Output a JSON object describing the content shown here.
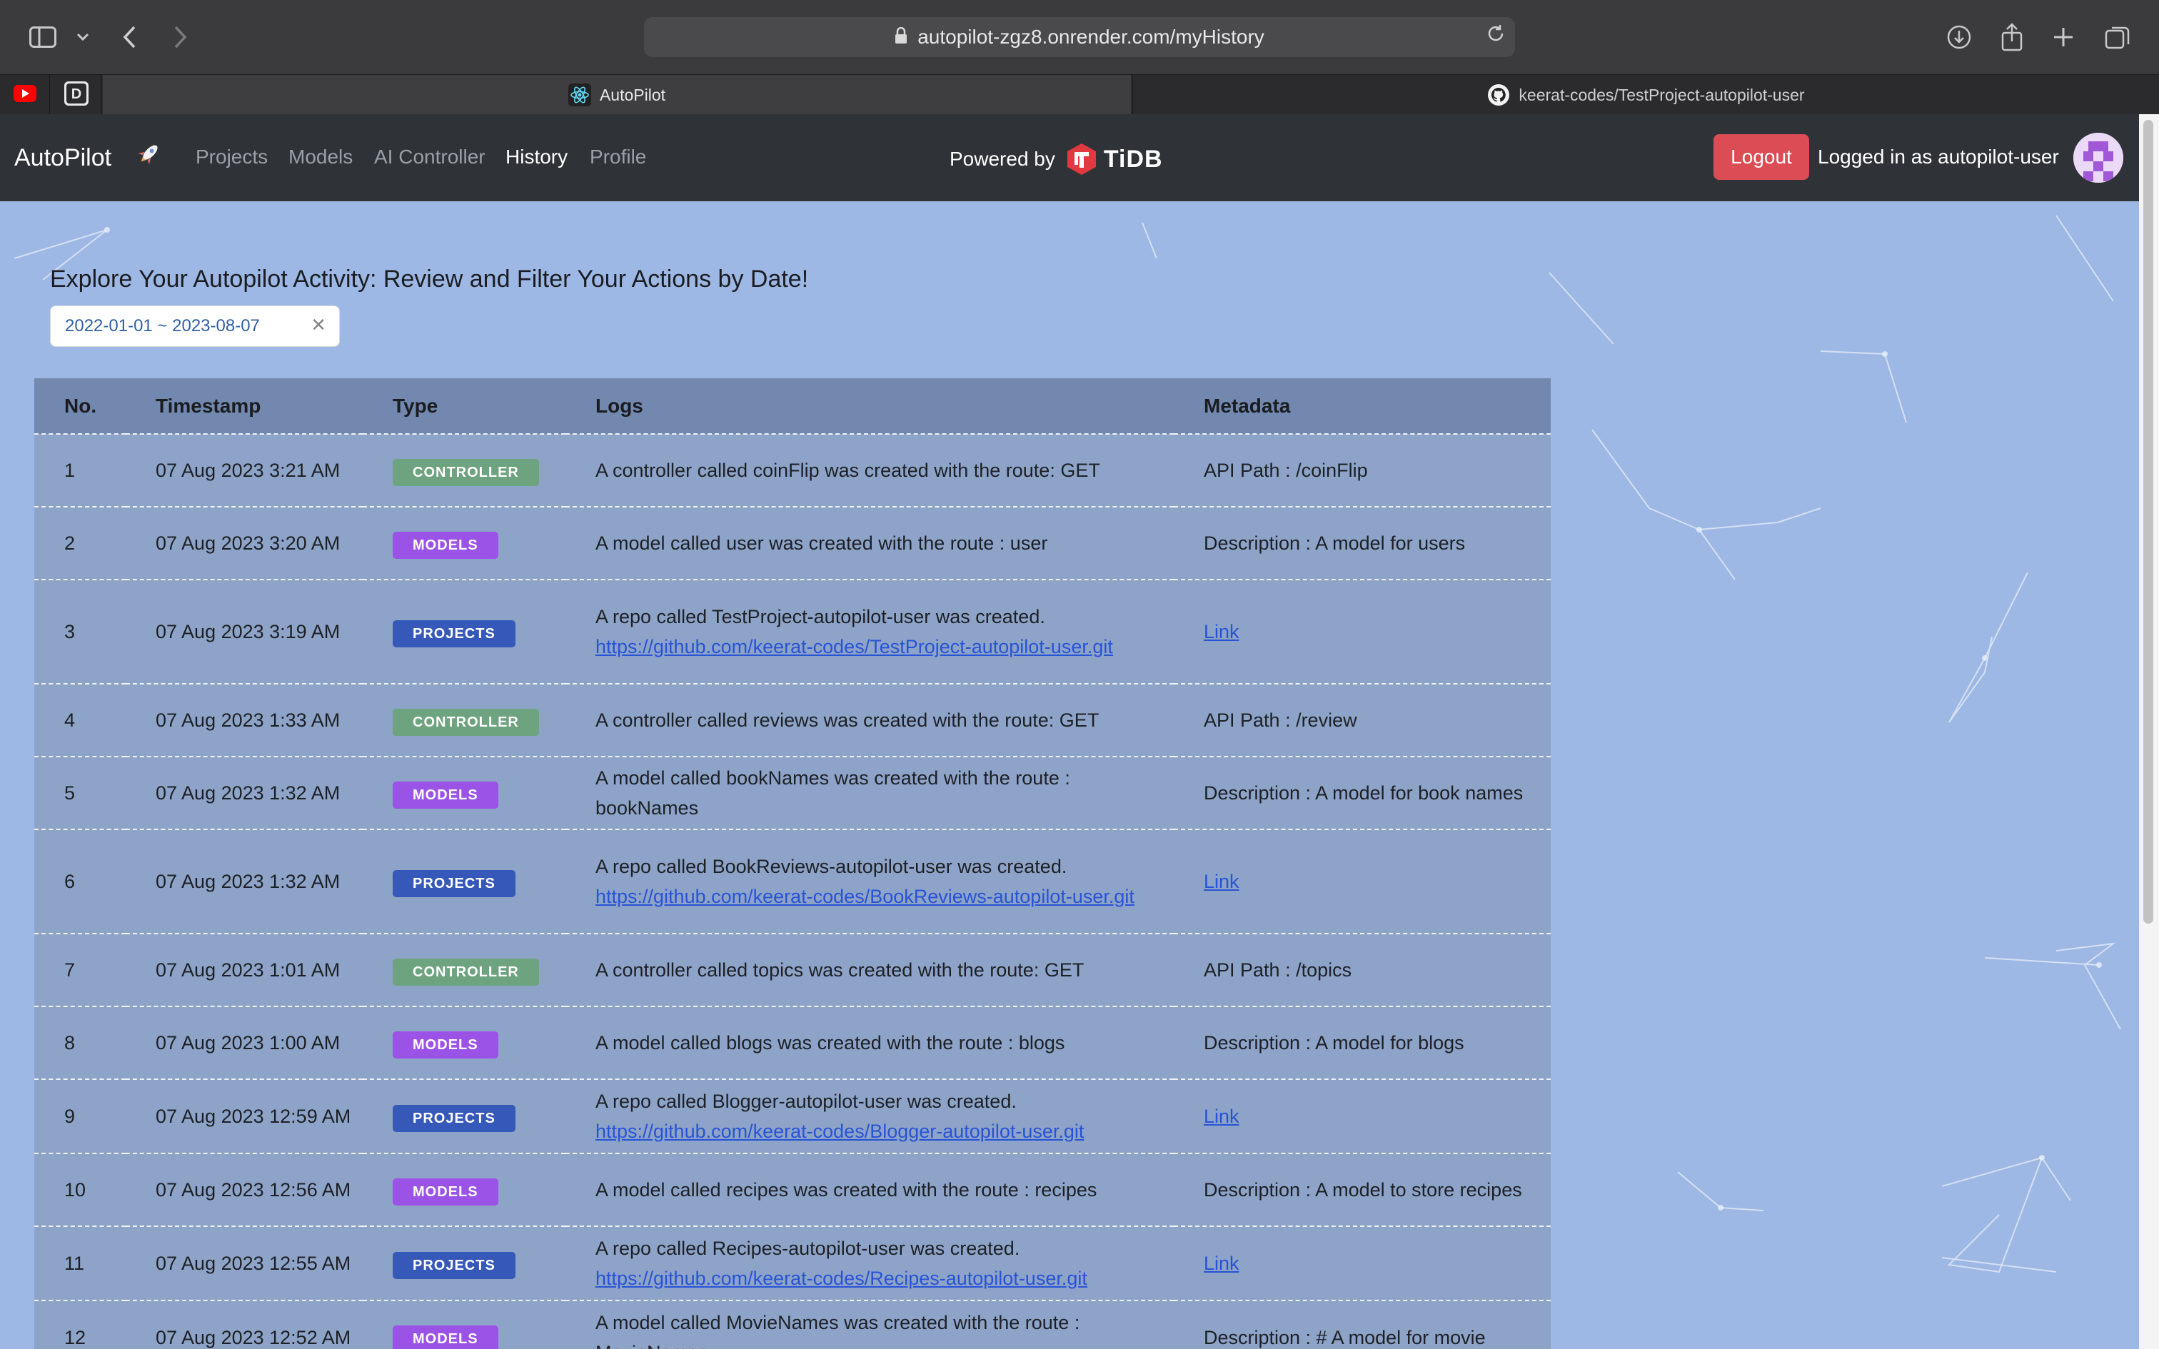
{
  "browser": {
    "url": "autopilot-zgz8.onrender.com/myHistory",
    "tabs": [
      {
        "label": "AutoPilot",
        "active": true
      },
      {
        "label": "keerat-codes/TestProject-autopilot-user",
        "active": false
      }
    ],
    "icons": [
      "sidebar-icon",
      "chevron-down-icon",
      "back-icon",
      "forward-icon",
      "lock-icon",
      "reload-icon",
      "download-icon",
      "share-icon",
      "new-tab-icon",
      "tab-overview-icon",
      "youtube-icon",
      "devto-icon",
      "react-icon",
      "github-icon"
    ]
  },
  "navbar": {
    "brand": "AutoPilot",
    "links": [
      "Projects",
      "Models",
      "AI Controller",
      "History",
      "Profile"
    ],
    "active_link": "History",
    "powered_by": "Powered by",
    "tidb": "TiDB",
    "logout": "Logout",
    "logged_in": "Logged in as autopilot-user"
  },
  "page": {
    "title": "Explore Your Autopilot Activity: Review and Filter Your Actions by Date!",
    "date_range": "2022-01-01 ~ 2023-08-07"
  },
  "table": {
    "headers": [
      "No.",
      "Timestamp",
      "Type",
      "Logs",
      "Metadata"
    ],
    "rows": [
      {
        "no": "1",
        "ts": "07 Aug 2023 3:21 AM",
        "type": "CONTROLLER",
        "log": "A controller called coinFlip was created with the route: GET",
        "meta": "API Path : /coinFlip"
      },
      {
        "no": "2",
        "ts": "07 Aug 2023 3:20 AM",
        "type": "MODELS",
        "log": "A model called user was created with the route : user",
        "meta": "Description : A model for users"
      },
      {
        "no": "3",
        "ts": "07 Aug 2023 3:19 AM",
        "type": "PROJECTS",
        "log": "A repo called TestProject-autopilot-user was created.",
        "url": "https://github.com/keerat-codes/TestProject-autopilot-user.git",
        "meta": "Link"
      },
      {
        "no": "4",
        "ts": "07 Aug 2023 1:33 AM",
        "type": "CONTROLLER",
        "log": "A controller called reviews was created with the route: GET",
        "meta": "API Path : /review"
      },
      {
        "no": "5",
        "ts": "07 Aug 2023 1:32 AM",
        "type": "MODELS",
        "log": "A model called bookNames was created with the route : bookNames",
        "meta": "Description : A model for book names"
      },
      {
        "no": "6",
        "ts": "07 Aug 2023 1:32 AM",
        "type": "PROJECTS",
        "log": "A repo called BookReviews-autopilot-user was created.",
        "url": "https://github.com/keerat-codes/BookReviews-autopilot-user.git",
        "meta": "Link"
      },
      {
        "no": "7",
        "ts": "07 Aug 2023 1:01 AM",
        "type": "CONTROLLER",
        "log": "A controller called topics was created with the route: GET",
        "meta": "API Path : /topics"
      },
      {
        "no": "8",
        "ts": "07 Aug 2023 1:00 AM",
        "type": "MODELS",
        "log": "A model called blogs was created with the route : blogs",
        "meta": "Description : A model for blogs"
      },
      {
        "no": "9",
        "ts": "07 Aug 2023 12:59 AM",
        "type": "PROJECTS",
        "log": "A repo called Blogger-autopilot-user was created.",
        "url": "https://github.com/keerat-codes/Blogger-autopilot-user.git",
        "meta": "Link"
      },
      {
        "no": "10",
        "ts": "07 Aug 2023 12:56 AM",
        "type": "MODELS",
        "log": "A model called recipes was created with the route : recipes",
        "meta": "Description : A model to store recipes"
      },
      {
        "no": "11",
        "ts": "07 Aug 2023 12:55 AM",
        "type": "PROJECTS",
        "log": "A repo called Recipes-autopilot-user was created.",
        "url": "https://github.com/keerat-codes/Recipes-autopilot-user.git",
        "meta": "Link"
      },
      {
        "no": "12",
        "ts": "07 Aug 2023 12:52 AM",
        "type": "MODELS",
        "log": "A model called MovieNames was created with the route : MovieNames",
        "meta": "Description : # A model for movie"
      }
    ]
  },
  "colors": {
    "background": "#9db8e4",
    "navbar": "#2f3338",
    "controller": "#6da37e",
    "models": "#9b52e6",
    "projects": "#3658b8",
    "logout": "#dc4c55",
    "link": "#2753d6"
  }
}
